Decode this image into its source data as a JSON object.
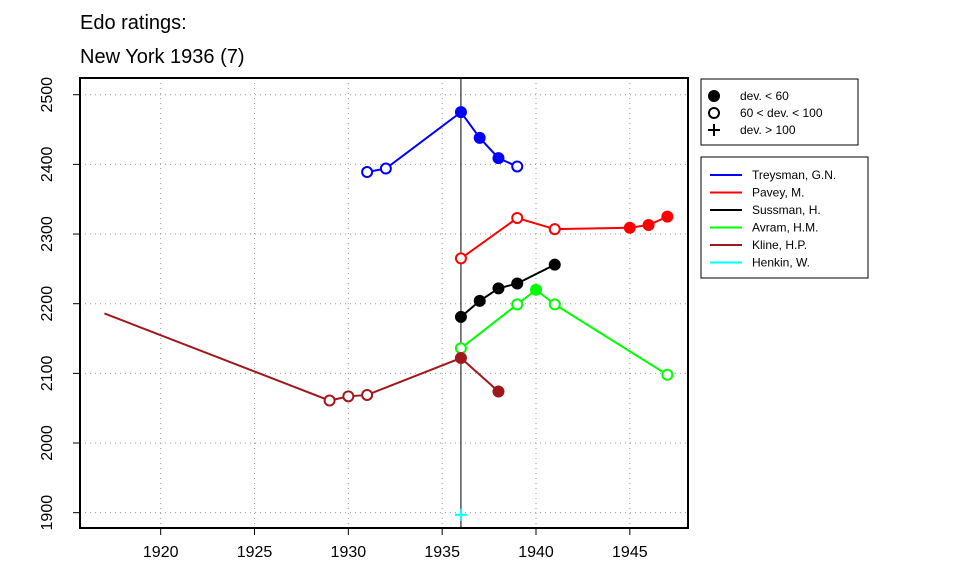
{
  "chart_data": {
    "type": "line",
    "title_lines": [
      "Edo ratings:",
      "New York 1936 (7)"
    ],
    "xlabel": "",
    "ylabel": "",
    "xlim": [
      1915.7,
      1948.1
    ],
    "ylim": [
      1878,
      2524
    ],
    "x_ticks": [
      1920,
      1925,
      1930,
      1935,
      1940,
      1945
    ],
    "y_ticks": [
      1900,
      2000,
      2100,
      2200,
      2300,
      2400,
      2500
    ],
    "grid": "dotted",
    "reference_line_x": 1936,
    "marker_legend": [
      {
        "symbol": "filled",
        "label": "dev. < 60"
      },
      {
        "symbol": "open",
        "label": "60 < dev. < 100"
      },
      {
        "symbol": "plus",
        "label": "dev. > 100"
      }
    ],
    "series": [
      {
        "name": "Treysman, G.N.",
        "color": "#0000ff",
        "points": [
          [
            1931,
            2389,
            "open"
          ],
          [
            1932,
            2394,
            "open"
          ],
          [
            1936,
            2475,
            "filled"
          ],
          [
            1937,
            2438,
            "filled"
          ],
          [
            1938,
            2409,
            "filled"
          ],
          [
            1939,
            2397,
            "open"
          ]
        ]
      },
      {
        "name": "Pavey, M.",
        "color": "#ff0000",
        "points": [
          [
            1936,
            2265,
            "open"
          ],
          [
            1939,
            2323,
            "open"
          ],
          [
            1941,
            2307,
            "open"
          ],
          [
            1945,
            2309,
            "filled"
          ],
          [
            1946,
            2313,
            "filled"
          ],
          [
            1947,
            2325,
            "filled"
          ]
        ]
      },
      {
        "name": "Sussman, H.",
        "color": "#000000",
        "points": [
          [
            1936,
            2181,
            "filled"
          ],
          [
            1937,
            2204,
            "filled"
          ],
          [
            1938,
            2222,
            "filled"
          ],
          [
            1939,
            2229,
            "filled"
          ],
          [
            1941,
            2256,
            "filled"
          ]
        ]
      },
      {
        "name": "Avram, H.M.",
        "color": "#00ff00",
        "points": [
          [
            1936,
            2136,
            "open"
          ],
          [
            1939,
            2199,
            "open"
          ],
          [
            1940,
            2220,
            "filled"
          ],
          [
            1941,
            2199,
            "open"
          ],
          [
            1947,
            2098,
            "open"
          ]
        ]
      },
      {
        "name": "Kline, H.P.",
        "color": "#a0171e",
        "points": [
          [
            1917,
            2186,
            "none"
          ],
          [
            1929,
            2061,
            "open"
          ],
          [
            1930,
            2067,
            "open"
          ],
          [
            1931,
            2069,
            "open"
          ],
          [
            1936,
            2122,
            "filled"
          ],
          [
            1938,
            2074,
            "filled"
          ]
        ]
      },
      {
        "name": "Henkin, W.",
        "color": "#00ffff",
        "points": [
          [
            1936,
            1897,
            "plus"
          ]
        ]
      }
    ]
  }
}
